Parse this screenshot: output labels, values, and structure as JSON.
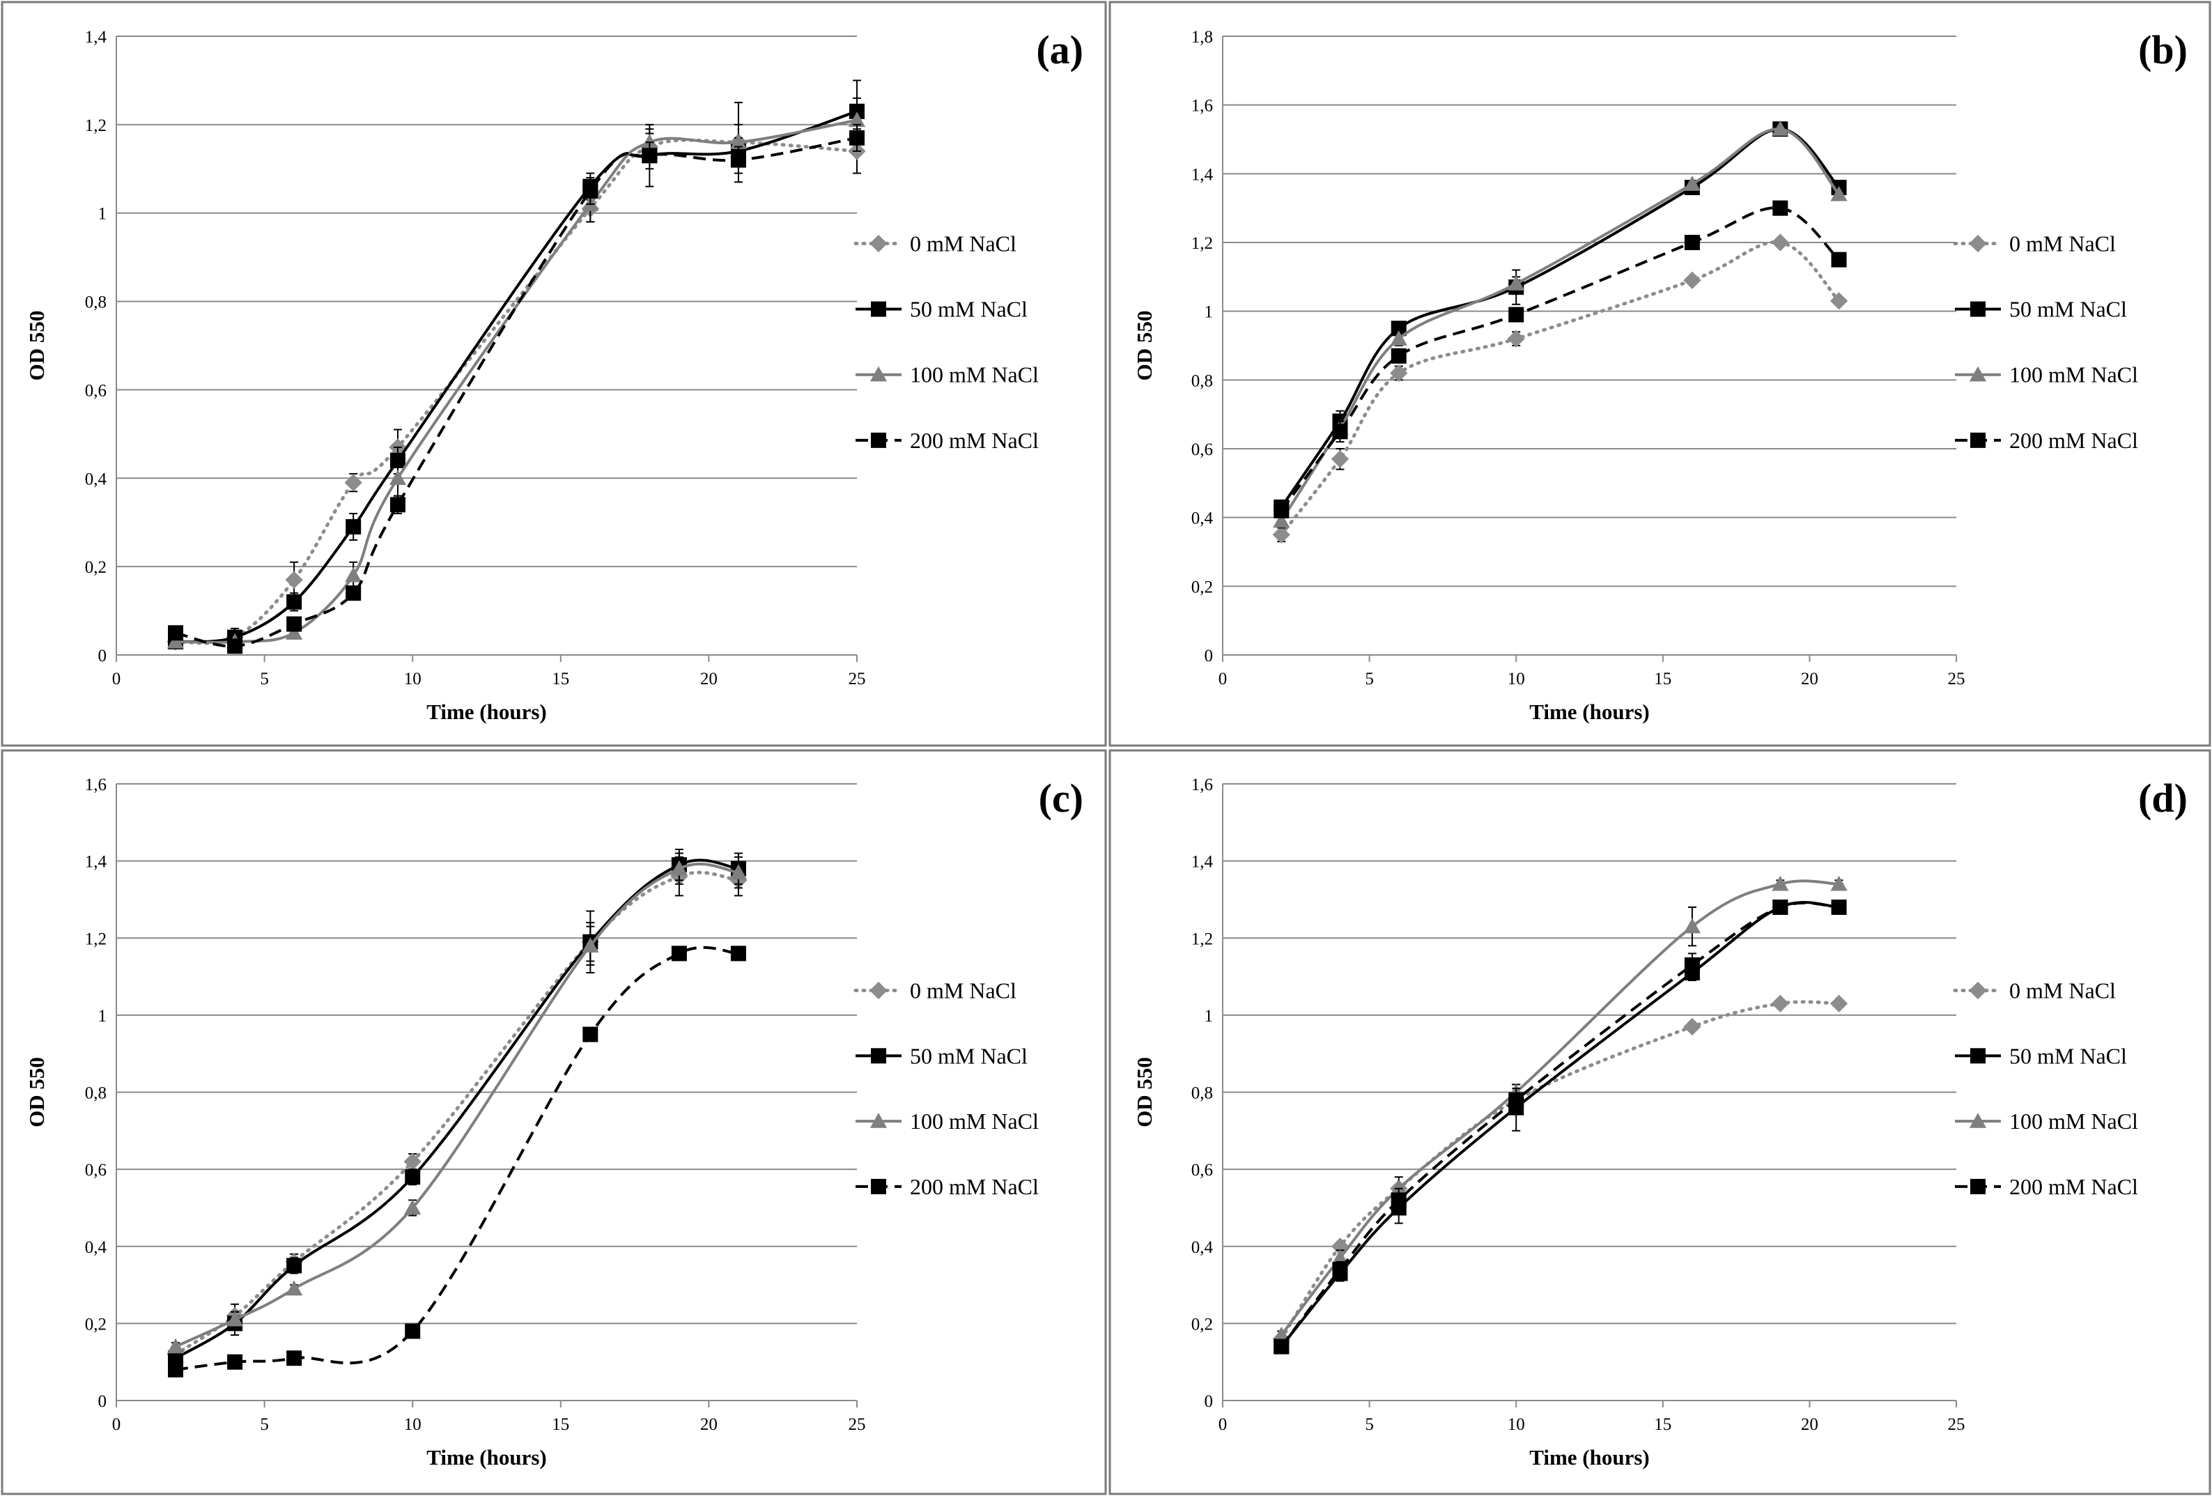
{
  "chart_data": [
    {
      "type": "line",
      "panel_label": "(a)",
      "xlabel": "Time (hours)",
      "ylabel": "OD 550",
      "xlim": [
        0,
        25
      ],
      "ylim": [
        0,
        1.4
      ],
      "xticks": [
        0,
        5,
        10,
        15,
        20,
        25
      ],
      "xtick_labels": [
        "0",
        "5",
        "10",
        "15",
        "20",
        "25"
      ],
      "yticks": [
        0,
        0.2,
        0.4,
        0.6,
        0.8,
        1,
        1.2,
        1.4
      ],
      "ytick_labels": [
        "0",
        "0,2",
        "0,4",
        "0,6",
        "0,8",
        "1",
        "1,2",
        "1,4"
      ],
      "grid": true,
      "legend_position": "right",
      "series": [
        {
          "name": "0 mM NaCl",
          "x": [
            2,
            4,
            6,
            8,
            9.5,
            16,
            18,
            21,
            25
          ],
          "values": [
            0.03,
            0.04,
            0.17,
            0.39,
            0.47,
            1.01,
            1.15,
            1.16,
            1.14
          ],
          "err": [
            0.01,
            0.01,
            0.04,
            0.02,
            0.04,
            0.03,
            0.03,
            0.09,
            0.05
          ]
        },
        {
          "name": "50 mM NaCl",
          "x": [
            2,
            4,
            6,
            8,
            9.5,
            16,
            18,
            21,
            25
          ],
          "values": [
            0.03,
            0.04,
            0.12,
            0.29,
            0.44,
            1.06,
            1.13,
            1.14,
            1.23
          ],
          "err": [
            0.01,
            0.02,
            0.02,
            0.03,
            0.03,
            0.03,
            0.07,
            0.03,
            0.07
          ]
        },
        {
          "name": "100 mM NaCl",
          "x": [
            2,
            4,
            6,
            8,
            9.5,
            16,
            18,
            21,
            25
          ],
          "values": [
            0.03,
            0.03,
            0.05,
            0.18,
            0.4,
            1.02,
            1.16,
            1.16,
            1.21
          ],
          "err": [
            0.01,
            0.01,
            0.01,
            0.03,
            0.04,
            0.04,
            0.03,
            0.04,
            0.05
          ]
        },
        {
          "name": "200 mM NaCl",
          "x": [
            2,
            4,
            6,
            8,
            9.5,
            16,
            18,
            21,
            25
          ],
          "values": [
            0.05,
            0.02,
            0.07,
            0.14,
            0.34,
            1.05,
            1.13,
            1.12,
            1.17
          ],
          "err": [
            0.01,
            0.01,
            0.01,
            0.01,
            0.02,
            0.03,
            0.03,
            0.03,
            0.03
          ]
        }
      ]
    },
    {
      "type": "line",
      "panel_label": "(b)",
      "xlabel": "Time (hours)",
      "ylabel": "OD 550",
      "xlim": [
        0,
        25
      ],
      "ylim": [
        0,
        1.8
      ],
      "xticks": [
        0,
        5,
        10,
        15,
        20,
        25
      ],
      "xtick_labels": [
        "0",
        "5",
        "10",
        "15",
        "20",
        "25"
      ],
      "yticks": [
        0,
        0.2,
        0.4,
        0.6,
        0.8,
        1,
        1.2,
        1.4,
        1.6,
        1.8
      ],
      "ytick_labels": [
        "0",
        "0,2",
        "0,4",
        "0,6",
        "0,8",
        "1",
        "1,2",
        "1,4",
        "1,6",
        "1,8"
      ],
      "grid": true,
      "legend_position": "right",
      "series": [
        {
          "name": "0 mM NaCl",
          "x": [
            2,
            4,
            6,
            10,
            16,
            19,
            21
          ],
          "values": [
            0.35,
            0.57,
            0.82,
            0.92,
            1.09,
            1.2,
            1.03
          ],
          "err": [
            0.02,
            0.03,
            0.02,
            0.02,
            0.01,
            0.01,
            0.01
          ]
        },
        {
          "name": "50 mM NaCl",
          "x": [
            2,
            4,
            6,
            10,
            16,
            19,
            21
          ],
          "values": [
            0.43,
            0.68,
            0.95,
            1.07,
            1.36,
            1.53,
            1.36
          ],
          "err": [
            0.02,
            0.03,
            0.01,
            0.05,
            0.01,
            0.01,
            0.01
          ]
        },
        {
          "name": "100 mM NaCl",
          "x": [
            2,
            4,
            6,
            10,
            16,
            19,
            21
          ],
          "values": [
            0.39,
            0.66,
            0.92,
            1.08,
            1.37,
            1.53,
            1.34
          ],
          "err": [
            0.02,
            0.02,
            0.02,
            0.02,
            0.01,
            0.01,
            0.01
          ]
        },
        {
          "name": "200 mM NaCl",
          "x": [
            2,
            4,
            6,
            10,
            16,
            19,
            21
          ],
          "values": [
            0.42,
            0.65,
            0.87,
            0.99,
            1.2,
            1.3,
            1.15
          ],
          "err": [
            0.02,
            0.03,
            0.02,
            0.02,
            0.02,
            0.01,
            0.01
          ]
        }
      ]
    },
    {
      "type": "line",
      "panel_label": "(c)",
      "xlabel": "Time (hours)",
      "ylabel": "OD 550",
      "xlim": [
        0,
        25
      ],
      "ylim": [
        0,
        1.6
      ],
      "xticks": [
        0,
        5,
        10,
        15,
        20,
        25
      ],
      "xtick_labels": [
        "0",
        "5",
        "10",
        "15",
        "20",
        "25"
      ],
      "yticks": [
        0,
        0.2,
        0.4,
        0.6,
        0.8,
        1,
        1.2,
        1.4,
        1.6
      ],
      "ytick_labels": [
        "0",
        "0,2",
        "0,4",
        "0,6",
        "0,8",
        "1",
        "1,2",
        "1,4",
        "1,6"
      ],
      "grid": true,
      "legend_position": "right",
      "series": [
        {
          "name": "0 mM NaCl",
          "x": [
            2,
            4,
            6,
            10,
            16,
            19,
            21
          ],
          "values": [
            0.12,
            0.22,
            0.36,
            0.62,
            1.19,
            1.36,
            1.35
          ],
          "err": [
            0.02,
            0.03,
            0.02,
            0.02,
            0.08,
            0.05,
            0.04
          ]
        },
        {
          "name": "50 mM NaCl",
          "x": [
            2,
            4,
            6,
            10,
            16,
            19,
            21
          ],
          "values": [
            0.11,
            0.2,
            0.35,
            0.58,
            1.19,
            1.39,
            1.38
          ],
          "err": [
            0.02,
            0.03,
            0.02,
            0.02,
            0.05,
            0.04,
            0.04
          ]
        },
        {
          "name": "100 mM NaCl",
          "x": [
            2,
            4,
            6,
            10,
            16,
            19,
            21
          ],
          "values": [
            0.14,
            0.21,
            0.29,
            0.5,
            1.18,
            1.38,
            1.37
          ],
          "err": [
            0.01,
            0.02,
            0.01,
            0.02,
            0.05,
            0.04,
            0.04
          ]
        },
        {
          "name": "200 mM NaCl",
          "x": [
            2,
            4,
            6,
            10,
            16,
            19,
            21
          ],
          "values": [
            0.08,
            0.1,
            0.11,
            0.18,
            0.95,
            1.16,
            1.16
          ],
          "err": [
            0.01,
            0.01,
            0.01,
            0.01,
            0.01,
            0.01,
            0.01
          ]
        }
      ]
    },
    {
      "type": "line",
      "panel_label": "(d)",
      "xlabel": "Time (hours)",
      "ylabel": "OD 550",
      "xlim": [
        0,
        25
      ],
      "ylim": [
        0,
        1.6
      ],
      "xticks": [
        0,
        5,
        10,
        15,
        20,
        25
      ],
      "xtick_labels": [
        "0",
        "5",
        "10",
        "15",
        "20",
        "25"
      ],
      "yticks": [
        0,
        0.2,
        0.4,
        0.6,
        0.8,
        1,
        1.2,
        1.4,
        1.6
      ],
      "ytick_labels": [
        "0",
        "0,2",
        "0,4",
        "0,6",
        "0,8",
        "1",
        "1,2",
        "1,4",
        "1,6"
      ],
      "grid": true,
      "legend_position": "right",
      "series": [
        {
          "name": "0 mM NaCl",
          "x": [
            2,
            4,
            6,
            10,
            16,
            19,
            21
          ],
          "values": [
            0.16,
            0.4,
            0.55,
            0.78,
            0.97,
            1.03,
            1.03
          ],
          "err": [
            0.01,
            0.01,
            0.01,
            0.02,
            0.01,
            0.01,
            0.01
          ]
        },
        {
          "name": "50 mM NaCl",
          "x": [
            2,
            4,
            6,
            10,
            16,
            19,
            21
          ],
          "values": [
            0.14,
            0.33,
            0.5,
            0.76,
            1.11,
            1.28,
            1.28
          ],
          "err": [
            0.01,
            0.02,
            0.04,
            0.06,
            0.02,
            0.01,
            0.01
          ]
        },
        {
          "name": "100 mM NaCl",
          "x": [
            2,
            4,
            6,
            10,
            16,
            19,
            21
          ],
          "values": [
            0.17,
            0.37,
            0.55,
            0.8,
            1.23,
            1.34,
            1.34
          ],
          "err": [
            0.01,
            0.02,
            0.03,
            0.02,
            0.05,
            0.01,
            0.01
          ]
        },
        {
          "name": "200 mM NaCl",
          "x": [
            2,
            4,
            6,
            10,
            16,
            19,
            21
          ],
          "values": [
            0.14,
            0.34,
            0.52,
            0.78,
            1.13,
            1.28,
            1.28
          ],
          "err": [
            0.01,
            0.02,
            0.03,
            0.03,
            0.03,
            0.01,
            0.01
          ]
        }
      ]
    }
  ],
  "series_styles": [
    {
      "color": "#8c8c8c",
      "dash": "dotted",
      "marker": "diamond"
    },
    {
      "color": "#000000",
      "dash": "solid",
      "marker": "square"
    },
    {
      "color": "#7f7f7f",
      "dash": "solid",
      "marker": "triangle"
    },
    {
      "color": "#000000",
      "dash": "dashed",
      "marker": "square"
    }
  ],
  "colors": {
    "grid": "#8a8a8a",
    "panel_border": "#7a7a7a",
    "error_bar": "#000000"
  }
}
